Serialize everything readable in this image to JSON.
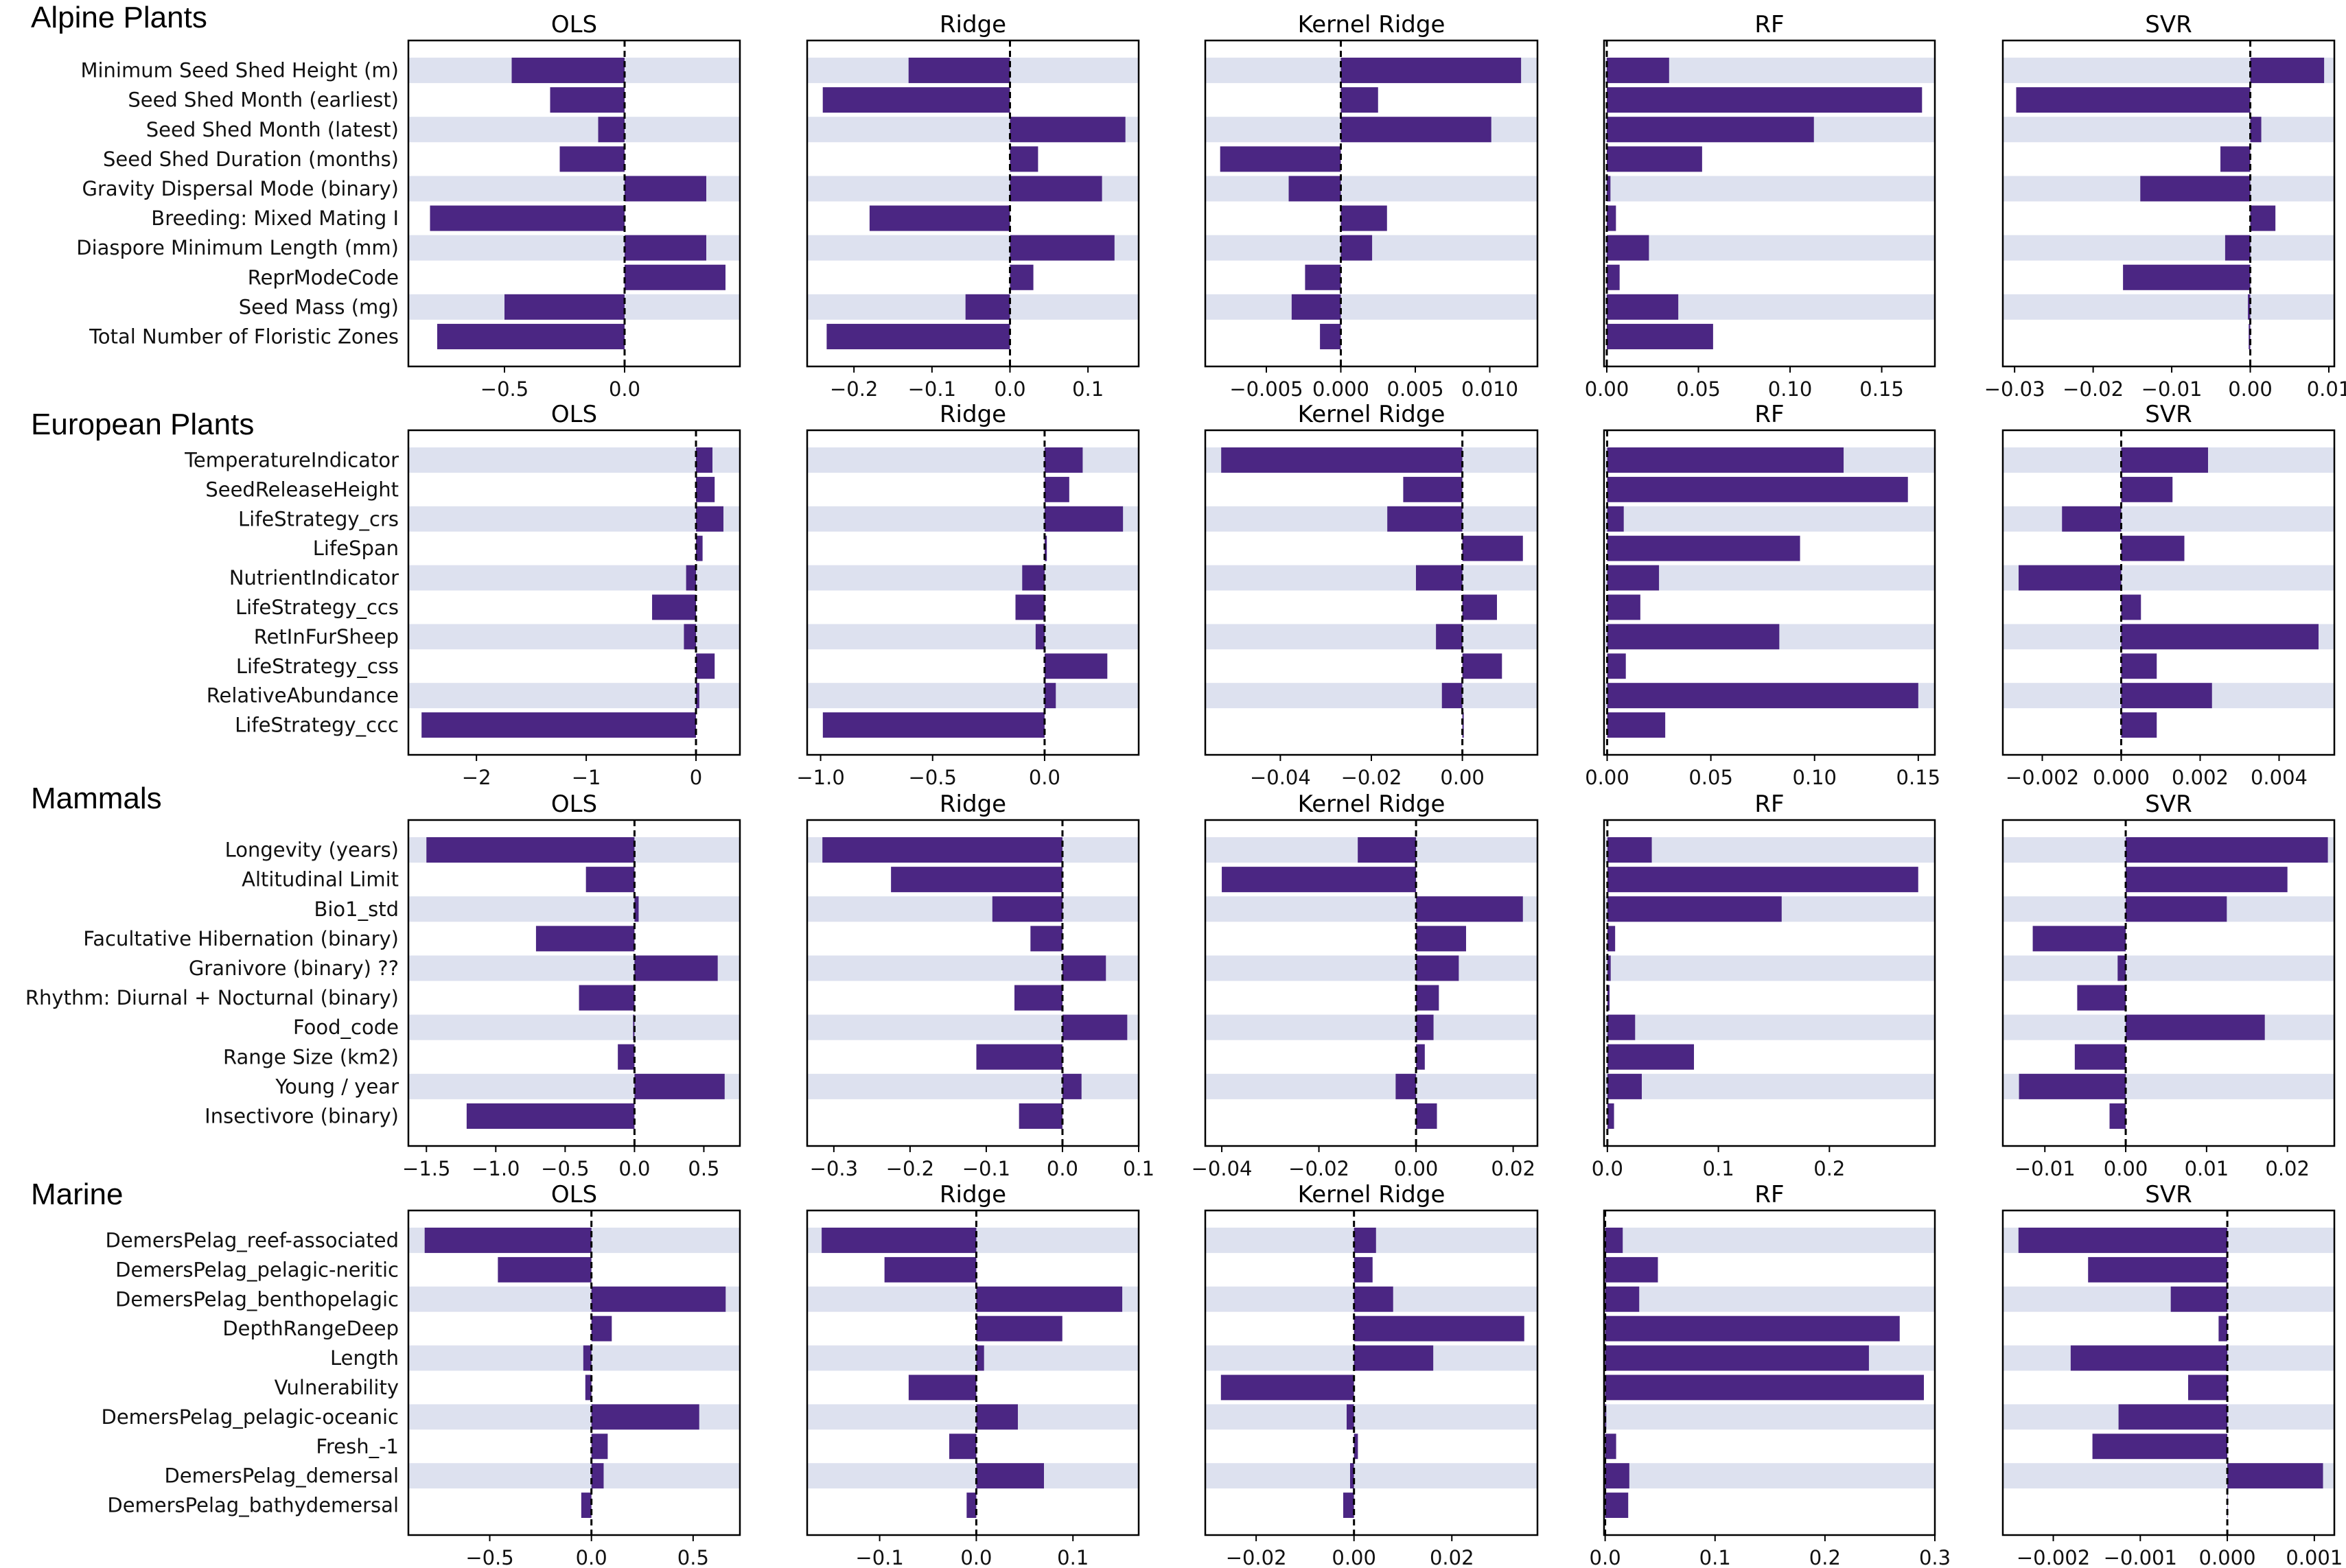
{
  "colors": {
    "bar": "#4b2683",
    "band": "#dde1ef",
    "zero_line": "#000000"
  },
  "chart_data": [
    {
      "type": "bar",
      "orientation": "horizontal",
      "section": "Alpine Plants",
      "title": "OLS",
      "categories": [
        "Minimum Seed Shed Height (m)",
        "Seed Shed Month (earliest)",
        "Seed Shed Month (latest)",
        "Seed Shed Duration (months)",
        "Gravity Dispersal Mode (binary)",
        "Breeding: Mixed Mating I",
        "Diaspore Minimum Length (mm)",
        "ReprModeCode",
        "Seed Mass (mg)",
        "Total Number of Floristic Zones"
      ],
      "values": [
        -0.47,
        -0.31,
        -0.11,
        -0.27,
        0.34,
        -0.81,
        0.34,
        0.42,
        -0.5,
        -0.78
      ],
      "xlim": [
        -0.9,
        0.48
      ],
      "xticks": [
        -0.5,
        0.0
      ],
      "xtick_labels": [
        "−0.5",
        "0.0"
      ],
      "grid": false
    },
    {
      "type": "bar",
      "orientation": "horizontal",
      "section": "Alpine Plants",
      "title": "Ridge",
      "categories": [
        "Minimum Seed Shed Height (m)",
        "Seed Shed Month (earliest)",
        "Seed Shed Month (latest)",
        "Seed Shed Duration (months)",
        "Gravity Dispersal Mode (binary)",
        "Breeding: Mixed Mating I",
        "Diaspore Minimum Length (mm)",
        "ReprModeCode",
        "Seed Mass (mg)",
        "Total Number of Floristic Zones"
      ],
      "values": [
        -0.13,
        -0.24,
        0.148,
        0.036,
        0.118,
        -0.18,
        0.134,
        0.03,
        -0.057,
        -0.235
      ],
      "xlim": [
        -0.26,
        0.165
      ],
      "xticks": [
        -0.2,
        -0.1,
        0.0,
        0.1
      ],
      "xtick_labels": [
        "−0.2",
        "−0.1",
        "0.0",
        "0.1"
      ],
      "grid": false
    },
    {
      "type": "bar",
      "orientation": "horizontal",
      "section": "Alpine Plants",
      "title": "Kernel Ridge",
      "categories": [
        "Minimum Seed Shed Height (m)",
        "Seed Shed Month (earliest)",
        "Seed Shed Month (latest)",
        "Seed Shed Duration (months)",
        "Gravity Dispersal Mode (binary)",
        "Breeding: Mixed Mating I",
        "Diaspore Minimum Length (mm)",
        "ReprModeCode",
        "Seed Mass (mg)",
        "Total Number of Floristic Zones"
      ],
      "values": [
        0.0121,
        0.0025,
        0.0101,
        -0.0081,
        -0.0035,
        0.0031,
        0.0021,
        -0.0024,
        -0.0033,
        -0.0014
      ],
      "xlim": [
        -0.0091,
        0.0132
      ],
      "xticks": [
        -0.005,
        0.0,
        0.005,
        0.01
      ],
      "xtick_labels": [
        "−0.005",
        "0.000",
        "0.005",
        "0.010"
      ],
      "grid": false
    },
    {
      "type": "bar",
      "orientation": "horizontal",
      "section": "Alpine Plants",
      "title": "RF",
      "categories": [
        "Minimum Seed Shed Height (m)",
        "Seed Shed Month (earliest)",
        "Seed Shed Month (latest)",
        "Seed Shed Duration (months)",
        "Gravity Dispersal Mode (binary)",
        "Breeding: Mixed Mating I",
        "Diaspore Minimum Length (mm)",
        "ReprModeCode",
        "Seed Mass (mg)",
        "Total Number of Floristic Zones"
      ],
      "values": [
        0.034,
        0.172,
        0.113,
        0.052,
        0.002,
        0.005,
        0.023,
        0.007,
        0.039,
        0.058
      ],
      "xlim": [
        -0.0015,
        0.179
      ],
      "xticks": [
        0.0,
        0.05,
        0.1,
        0.15
      ],
      "xtick_labels": [
        "0.00",
        "0.05",
        "0.10",
        "0.15"
      ],
      "grid": false
    },
    {
      "type": "bar",
      "orientation": "horizontal",
      "section": "Alpine Plants",
      "title": "SVR",
      "categories": [
        "Minimum Seed Shed Height (m)",
        "Seed Shed Month (earliest)",
        "Seed Shed Month (latest)",
        "Seed Shed Duration (months)",
        "Gravity Dispersal Mode (binary)",
        "Breeding: Mixed Mating I",
        "Diaspore Minimum Length (mm)",
        "ReprModeCode",
        "Seed Mass (mg)",
        "Total Number of Floristic Zones"
      ],
      "values": [
        0.0094,
        -0.0298,
        0.0014,
        -0.0038,
        -0.014,
        0.0032,
        -0.0032,
        -0.0162,
        -0.0003,
        -0.0002
      ],
      "xlim": [
        -0.0315,
        0.0107
      ],
      "xticks": [
        -0.03,
        -0.02,
        -0.01,
        0.0,
        0.01
      ],
      "xtick_labels": [
        "−0.03",
        "−0.02",
        "−0.01",
        "0.00",
        "0.01"
      ],
      "grid": false
    },
    {
      "type": "bar",
      "orientation": "horizontal",
      "section": "European Plants",
      "title": "OLS",
      "categories": [
        "TemperatureIndicator",
        "SeedReleaseHeight",
        "LifeStrategy_crs",
        "LifeSpan",
        "NutrientIndicator",
        "LifeStrategy_ccs",
        "RetInFurSheep",
        "LifeStrategy_css",
        "RelativeAbundance",
        "LifeStrategy_ccc"
      ],
      "values": [
        0.15,
        0.17,
        0.25,
        0.06,
        -0.09,
        -0.4,
        -0.11,
        0.17,
        0.03,
        -2.5
      ],
      "xlim": [
        -2.62,
        0.4
      ],
      "xticks": [
        -2,
        -1,
        0
      ],
      "xtick_labels": [
        "−2",
        "−1",
        "0"
      ],
      "grid": false
    },
    {
      "type": "bar",
      "orientation": "horizontal",
      "section": "European Plants",
      "title": "Ridge",
      "categories": [
        "TemperatureIndicator",
        "SeedReleaseHeight",
        "LifeStrategy_crs",
        "LifeSpan",
        "NutrientIndicator",
        "LifeStrategy_ccs",
        "RetInFurSheep",
        "LifeStrategy_css",
        "RelativeAbundance",
        "LifeStrategy_ccc"
      ],
      "values": [
        0.17,
        0.11,
        0.35,
        0.01,
        -0.1,
        -0.13,
        -0.04,
        0.28,
        0.05,
        -0.99
      ],
      "xlim": [
        -1.06,
        0.42
      ],
      "xticks": [
        -1.0,
        -0.5,
        0.0
      ],
      "xtick_labels": [
        "−1.0",
        "−0.5",
        "0.0"
      ],
      "grid": false
    },
    {
      "type": "bar",
      "orientation": "horizontal",
      "section": "European Plants",
      "title": "Kernel Ridge",
      "categories": [
        "TemperatureIndicator",
        "SeedReleaseHeight",
        "LifeStrategy_crs",
        "LifeSpan",
        "NutrientIndicator",
        "LifeStrategy_ccs",
        "RetInFurSheep",
        "LifeStrategy_css",
        "RelativeAbundance",
        "LifeStrategy_ccc"
      ],
      "values": [
        -0.053,
        -0.013,
        -0.0165,
        0.0133,
        -0.0102,
        0.0076,
        -0.0058,
        0.0087,
        -0.0045,
        0.0003
      ],
      "xlim": [
        -0.0565,
        0.0165
      ],
      "xticks": [
        -0.04,
        -0.02,
        0.0
      ],
      "xtick_labels": [
        "−0.04",
        "−0.02",
        "0.00"
      ],
      "grid": false
    },
    {
      "type": "bar",
      "orientation": "horizontal",
      "section": "European Plants",
      "title": "RF",
      "categories": [
        "TemperatureIndicator",
        "SeedReleaseHeight",
        "LifeStrategy_crs",
        "LifeSpan",
        "NutrientIndicator",
        "LifeStrategy_ccs",
        "RetInFurSheep",
        "LifeStrategy_css",
        "RelativeAbundance",
        "LifeStrategy_ccc"
      ],
      "values": [
        0.114,
        0.145,
        0.008,
        0.093,
        0.025,
        0.016,
        0.083,
        0.009,
        0.15,
        0.028
      ],
      "xlim": [
        -0.0015,
        0.158
      ],
      "xticks": [
        0.0,
        0.05,
        0.1,
        0.15
      ],
      "xtick_labels": [
        "0.00",
        "0.05",
        "0.10",
        "0.15"
      ],
      "grid": false
    },
    {
      "type": "bar",
      "orientation": "horizontal",
      "section": "European Plants",
      "title": "SVR",
      "categories": [
        "TemperatureIndicator",
        "SeedReleaseHeight",
        "LifeStrategy_crs",
        "LifeSpan",
        "NutrientIndicator",
        "LifeStrategy_ccs",
        "RetInFurSheep",
        "LifeStrategy_css",
        "RelativeAbundance",
        "LifeStrategy_ccc"
      ],
      "values": [
        0.0022,
        0.0013,
        -0.0015,
        0.0016,
        -0.0026,
        0.0005,
        0.005,
        0.0009,
        0.0023,
        0.0009
      ],
      "xlim": [
        -0.003,
        0.0054
      ],
      "xticks": [
        -0.002,
        0.0,
        0.002,
        0.004
      ],
      "xtick_labels": [
        "−0.002",
        "0.000",
        "0.002",
        "0.004"
      ],
      "grid": false
    },
    {
      "type": "bar",
      "orientation": "horizontal",
      "section": "Mammals",
      "title": "OLS",
      "categories": [
        "Longevity (years)",
        "Altitudinal Limit",
        "Bio1_std",
        "Facultative Hibernation (binary)",
        "Granivore (binary) ??",
        "Rhythm: Diurnal + Nocturnal (binary)",
        "Food_code",
        "Range Size (km2)",
        "Young / year",
        "Insectivore (binary)"
      ],
      "values": [
        -1.5,
        -0.35,
        0.03,
        -0.71,
        0.6,
        -0.4,
        -0.01,
        -0.12,
        0.65,
        -1.21
      ],
      "xlim": [
        -1.63,
        0.76
      ],
      "xticks": [
        -1.5,
        -1.0,
        -0.5,
        0.0,
        0.5
      ],
      "xtick_labels": [
        "−1.5",
        "−1.0",
        "−0.5",
        "0.0",
        "0.5"
      ],
      "grid": false
    },
    {
      "type": "bar",
      "orientation": "horizontal",
      "section": "Mammals",
      "title": "Ridge",
      "categories": [
        "Longevity (years)",
        "Altitudinal Limit",
        "Bio1_std",
        "Facultative Hibernation (binary)",
        "Granivore (binary) ??",
        "Rhythm: Diurnal + Nocturnal (binary)",
        "Food_code",
        "Range Size (km2)",
        "Young / year",
        "Insectivore (binary)"
      ],
      "values": [
        -0.315,
        -0.225,
        -0.092,
        -0.042,
        0.057,
        -0.063,
        0.085,
        -0.113,
        0.025,
        -0.057
      ],
      "xlim": [
        -0.335,
        0.1
      ],
      "xticks": [
        -0.3,
        -0.2,
        -0.1,
        0.0,
        0.1
      ],
      "xtick_labels": [
        "−0.3",
        "−0.2",
        "−0.1",
        "0.0",
        "0.1"
      ],
      "grid": false
    },
    {
      "type": "bar",
      "orientation": "horizontal",
      "section": "Mammals",
      "title": "Kernel Ridge",
      "categories": [
        "Longevity (years)",
        "Altitudinal Limit",
        "Bio1_std",
        "Facultative Hibernation (binary)",
        "Granivore (binary) ??",
        "Rhythm: Diurnal + Nocturnal (binary)",
        "Food_code",
        "Range Size (km2)",
        "Young / year",
        "Insectivore (binary)"
      ],
      "values": [
        -0.012,
        -0.04,
        0.022,
        0.0103,
        0.0088,
        0.0047,
        0.0036,
        0.0018,
        -0.0042,
        0.0043
      ],
      "xlim": [
        -0.0434,
        0.025
      ],
      "xticks": [
        -0.04,
        -0.02,
        0.0,
        0.02
      ],
      "xtick_labels": [
        "−0.04",
        "−0.02",
        "0.00",
        "0.02"
      ],
      "grid": false
    },
    {
      "type": "bar",
      "orientation": "horizontal",
      "section": "Mammals",
      "title": "RF",
      "categories": [
        "Longevity (years)",
        "Altitudinal Limit",
        "Bio1_std",
        "Facultative Hibernation (binary)",
        "Granivore (binary) ??",
        "Rhythm: Diurnal + Nocturnal (binary)",
        "Food_code",
        "Range Size (km2)",
        "Young / year",
        "Insectivore (binary)"
      ],
      "values": [
        0.04,
        0.28,
        0.157,
        0.007,
        0.003,
        0.002,
        0.025,
        0.078,
        0.031,
        0.006
      ],
      "xlim": [
        -0.003,
        0.295
      ],
      "xticks": [
        0.0,
        0.1,
        0.2
      ],
      "xtick_labels": [
        "0.0",
        "0.1",
        "0.2"
      ],
      "grid": false
    },
    {
      "type": "bar",
      "orientation": "horizontal",
      "section": "Mammals",
      "title": "SVR",
      "categories": [
        "Longevity (years)",
        "Altitudinal Limit",
        "Bio1_std",
        "Facultative Hibernation (binary)",
        "Granivore (binary) ??",
        "Rhythm: Diurnal + Nocturnal (binary)",
        "Food_code",
        "Range Size (km2)",
        "Young / year",
        "Insectivore (binary)"
      ],
      "values": [
        0.025,
        0.02,
        0.0125,
        -0.0115,
        -0.001,
        -0.006,
        0.0172,
        -0.0063,
        -0.0132,
        -0.002
      ],
      "xlim": [
        -0.0152,
        0.0258
      ],
      "xticks": [
        -0.01,
        0.0,
        0.01,
        0.02
      ],
      "xtick_labels": [
        "−0.01",
        "0.00",
        "0.01",
        "0.02"
      ],
      "grid": false
    },
    {
      "type": "bar",
      "orientation": "horizontal",
      "section": "Marine",
      "title": "OLS",
      "categories": [
        "DemersPelag_reef-associated",
        "DemersPelag_pelagic-neritic",
        "DemersPelag_benthopelagic",
        "DepthRangeDeep",
        "Length",
        "Vulnerability",
        "DemersPelag_pelagic-oceanic",
        "Fresh_-1",
        "DemersPelag_demersal",
        "DemersPelag_bathydemersal"
      ],
      "values": [
        -0.82,
        -0.46,
        0.66,
        0.1,
        -0.04,
        -0.03,
        0.53,
        0.08,
        0.06,
        -0.05
      ],
      "xlim": [
        -0.9,
        0.73
      ],
      "xticks": [
        -0.5,
        0.0,
        0.5
      ],
      "xtick_labels": [
        "−0.5",
        "0.0",
        "0.5"
      ],
      "grid": false
    },
    {
      "type": "bar",
      "orientation": "horizontal",
      "section": "Marine",
      "title": "Ridge",
      "categories": [
        "DemersPelag_reef-associated",
        "DemersPelag_pelagic-neritic",
        "DemersPelag_benthopelagic",
        "DepthRangeDeep",
        "Length",
        "Vulnerability",
        "DemersPelag_pelagic-oceanic",
        "Fresh_-1",
        "DemersPelag_demersal",
        "DemersPelag_bathydemersal"
      ],
      "values": [
        -0.16,
        -0.095,
        0.151,
        0.089,
        0.008,
        -0.07,
        0.043,
        -0.028,
        0.07,
        -0.01
      ],
      "xlim": [
        -0.175,
        0.168
      ],
      "xticks": [
        -0.1,
        0.0,
        0.1
      ],
      "xtick_labels": [
        "−0.1",
        "0.0",
        "0.1"
      ],
      "grid": false
    },
    {
      "type": "bar",
      "orientation": "horizontal",
      "section": "Marine",
      "title": "Kernel Ridge",
      "categories": [
        "DemersPelag_reef-associated",
        "DemersPelag_pelagic-neritic",
        "DemersPelag_benthopelagic",
        "DepthRangeDeep",
        "Length",
        "Vulnerability",
        "DemersPelag_pelagic-oceanic",
        "Fresh_-1",
        "DemersPelag_demersal",
        "DemersPelag_bathydemersal"
      ],
      "values": [
        0.0045,
        0.0038,
        0.008,
        0.0348,
        0.0162,
        -0.0272,
        -0.0015,
        0.0008,
        -0.0008,
        -0.0022
      ],
      "xlim": [
        -0.0304,
        0.0375
      ],
      "xticks": [
        -0.02,
        0.0,
        0.02
      ],
      "xtick_labels": [
        "−0.02",
        "0.00",
        "0.02"
      ],
      "grid": false
    },
    {
      "type": "bar",
      "orientation": "horizontal",
      "section": "Marine",
      "title": "RF",
      "categories": [
        "DemersPelag_reef-associated",
        "DemersPelag_pelagic-neritic",
        "DemersPelag_benthopelagic",
        "DepthRangeDeep",
        "Length",
        "Vulnerability",
        "DemersPelag_pelagic-oceanic",
        "Fresh_-1",
        "DemersPelag_demersal",
        "DemersPelag_bathydemersal"
      ],
      "values": [
        0.016,
        0.048,
        0.031,
        0.268,
        0.24,
        0.29,
        0.001,
        0.01,
        0.022,
        0.021
      ],
      "xlim": [
        -0.001,
        0.3
      ],
      "xticks": [
        0.0,
        0.1,
        0.2,
        0.3
      ],
      "xtick_labels": [
        "0.0",
        "0.1",
        "0.2",
        "0.3"
      ],
      "grid": false
    },
    {
      "type": "bar",
      "orientation": "horizontal",
      "section": "Marine",
      "title": "SVR",
      "categories": [
        "DemersPelag_reef-associated",
        "DemersPelag_pelagic-neritic",
        "DemersPelag_benthopelagic",
        "DepthRangeDeep",
        "Length",
        "Vulnerability",
        "DemersPelag_pelagic-oceanic",
        "Fresh_-1",
        "DemersPelag_demersal",
        "DemersPelag_bathydemersal"
      ],
      "values": [
        -0.0024,
        -0.0016,
        -0.00065,
        -0.0001,
        -0.0018,
        -0.00045,
        -0.00125,
        -0.00155,
        0.0011,
        0.0
      ],
      "xlim": [
        -0.00258,
        0.00123
      ],
      "xticks": [
        -0.002,
        -0.001,
        0.0,
        0.001
      ],
      "xtick_labels": [
        "−0.002",
        "−0.001",
        "0.000",
        "0.001"
      ],
      "grid": false
    }
  ]
}
